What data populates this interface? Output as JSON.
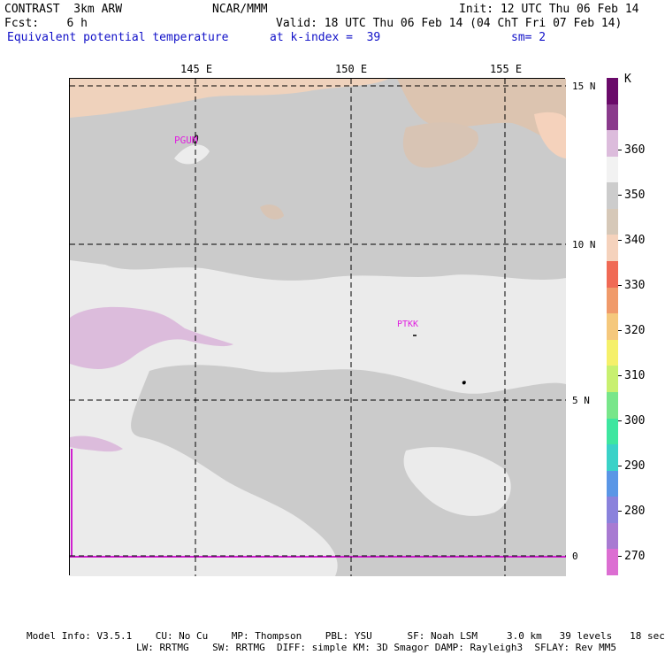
{
  "header": {
    "model": "CONTRAST  3km ARW",
    "org": "NCAR/MMM",
    "init": "Init: 12 UTC Thu 06 Feb 14",
    "fcst": "Fcst:    6 h",
    "valid": "Valid: 18 UTC Thu 06 Feb 14 (04 ChT Fri 07 Feb 14)",
    "field": "Equivalent potential temperature",
    "level": "at k-index =  39",
    "smoothing": "sm= 2"
  },
  "map": {
    "lon_labels": [
      "145 E",
      "150 E",
      "155 E"
    ],
    "lat_labels": [
      "15 N",
      "10 N",
      "5 N",
      "0"
    ],
    "stations": [
      "PGUM",
      "PTKK"
    ]
  },
  "legend": {
    "unit": "K",
    "labels": [
      "360",
      "350",
      "340",
      "330",
      "320",
      "310",
      "300",
      "290",
      "280",
      "270"
    ],
    "colors": [
      "#6a0a6a",
      "#8a3a8c",
      "#dcbcdc",
      "#f2f2f2",
      "#cccccc",
      "#d6c8b8",
      "#f5d2bc",
      "#f06a55",
      "#f09a6a",
      "#f5c87c",
      "#f5f06a",
      "#c8f070",
      "#78e68a",
      "#3ee6a0",
      "#3ad2c8",
      "#5a96e6",
      "#8a82dc",
      "#a87ad2",
      "#dc6ed2"
    ]
  },
  "footer": {
    "line1": "Model Info: V3.5.1    CU: No Cu    MP: Thompson    PBL: YSU      SF: Noah LSM     3.0 km   39 levels   18 sec",
    "line2": "LW: RRTMG    SW: RRTMG  DIFF: simple KM: 3D Smagor DAMP: Rayleigh3  SFLAY: Rev MM5"
  }
}
